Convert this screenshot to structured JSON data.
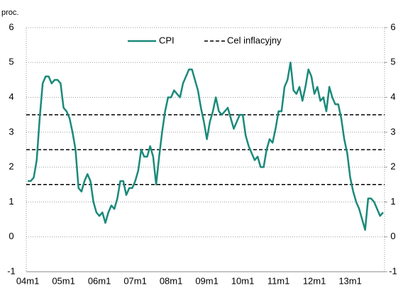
{
  "chart_data": {
    "type": "line",
    "y_label": "proc.",
    "categories": [
      "04m1",
      null,
      null,
      null,
      null,
      null,
      null,
      null,
      null,
      null,
      null,
      null,
      "05m1",
      null,
      null,
      null,
      null,
      null,
      null,
      null,
      null,
      null,
      null,
      null,
      "06m1",
      null,
      null,
      null,
      null,
      null,
      null,
      null,
      null,
      null,
      null,
      null,
      "07m1",
      null,
      null,
      null,
      null,
      null,
      null,
      null,
      null,
      null,
      null,
      null,
      "08m1",
      null,
      null,
      null,
      null,
      null,
      null,
      null,
      null,
      null,
      null,
      null,
      "09m1",
      null,
      null,
      null,
      null,
      null,
      null,
      null,
      null,
      null,
      null,
      null,
      "10m1",
      null,
      null,
      null,
      null,
      null,
      null,
      null,
      null,
      null,
      null,
      null,
      "11m1",
      null,
      null,
      null,
      null,
      null,
      null,
      null,
      null,
      null,
      null,
      null,
      "12m1",
      null,
      null,
      null,
      null,
      null,
      null,
      null,
      null,
      null,
      null,
      null,
      "13m1",
      null,
      null,
      null,
      null,
      null,
      null,
      null,
      null,
      null,
      null,
      null
    ],
    "series": [
      {
        "name": "CPI",
        "color": "#1a8a7a",
        "values": [
          1.6,
          1.6,
          1.7,
          2.2,
          3.4,
          4.4,
          4.6,
          4.6,
          4.4,
          4.5,
          4.5,
          4.4,
          3.7,
          3.6,
          3.4,
          3.0,
          2.5,
          1.4,
          1.3,
          1.6,
          1.8,
          1.6,
          1.0,
          0.7,
          0.6,
          0.7,
          0.4,
          0.7,
          0.9,
          0.8,
          1.1,
          1.6,
          1.6,
          1.2,
          1.4,
          1.4,
          1.6,
          1.9,
          2.5,
          2.3,
          2.3,
          2.6,
          2.3,
          1.5,
          2.3,
          3.0,
          3.6,
          4.0,
          4.0,
          4.2,
          4.1,
          4.0,
          4.4,
          4.6,
          4.8,
          4.8,
          4.5,
          4.2,
          3.7,
          3.3,
          2.8,
          3.3,
          3.6,
          4.0,
          3.6,
          3.5,
          3.6,
          3.7,
          3.4,
          3.1,
          3.3,
          3.5,
          3.5,
          2.9,
          2.6,
          2.4,
          2.2,
          2.3,
          2.0,
          2.0,
          2.5,
          2.8,
          2.7,
          3.1,
          3.6,
          3.6,
          4.3,
          4.5,
          5.0,
          4.2,
          4.1,
          4.3,
          3.9,
          4.3,
          4.8,
          4.6,
          4.1,
          4.3,
          3.9,
          4.0,
          3.6,
          4.3,
          4.0,
          3.8,
          3.8,
          3.4,
          2.8,
          2.4,
          1.7,
          1.3,
          1.0,
          0.8,
          0.5,
          0.2,
          1.1,
          1.1,
          1.0,
          0.8,
          0.6,
          0.7
        ]
      }
    ],
    "reference_lines": {
      "name": "Cel inflacyjny",
      "color": "#000000",
      "style": "dashed",
      "values": [
        1.5,
        2.5,
        3.5
      ]
    },
    "ylim": [
      -1,
      6
    ],
    "yticks": [
      -1,
      0,
      1,
      2,
      3,
      4,
      5,
      6
    ],
    "y2lim": [
      -1,
      6
    ],
    "y2ticks": [
      -1,
      0,
      1,
      2,
      3,
      4,
      5,
      6
    ],
    "grid": true,
    "legend": "top"
  }
}
